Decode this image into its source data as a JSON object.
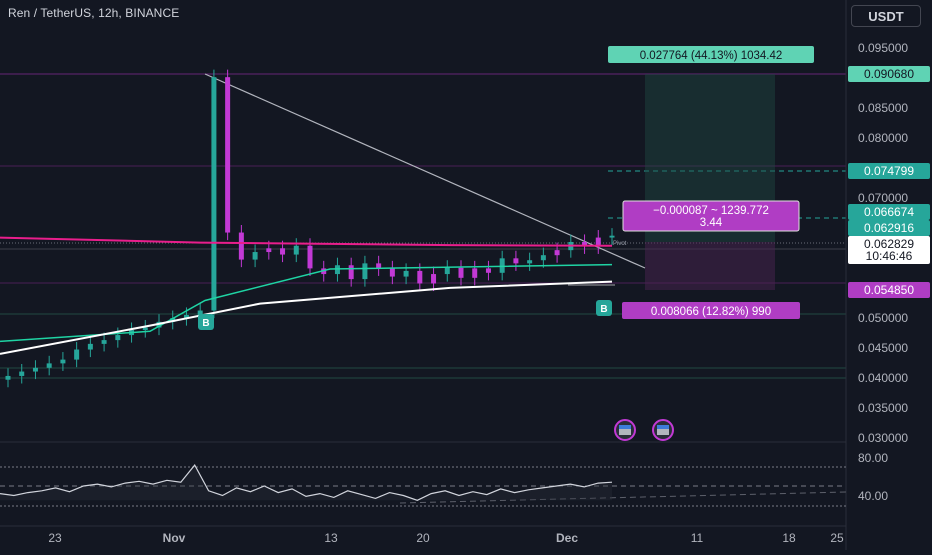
{
  "header": {
    "symbol_title": "Ren / TetherUS, 12h, BINANCE",
    "currency_label": "USDT"
  },
  "colors": {
    "background": "#131722",
    "candle_up": "#26a69a",
    "candle_purple": "#c239d5",
    "ema_magenta": "#e91e8c",
    "ema_green": "#1fd4a4",
    "ema_white": "#ffffff",
    "trendline": "#b2b5be",
    "target_badge": "#5fd3b4",
    "stop_badge": "#b03dc4"
  },
  "chart_data": {
    "type": "line",
    "title": "",
    "xlabel": "",
    "ylabel": "",
    "ylim": [
      0.03,
      0.0955
    ],
    "y_ticks": [
      "0.095000",
      "0.085000",
      "0.080000",
      "0.070000",
      "0.050000",
      "0.045000",
      "0.040000",
      "0.035000",
      "0.030000"
    ],
    "x_ticks": [
      "23",
      "Nov",
      "13",
      "20",
      "Dec",
      "11",
      "18",
      "25"
    ],
    "price_labels": {
      "top_target": "0.090680",
      "target": "0.074799",
      "level_a": "0.066674",
      "level_b": "0.062916",
      "current_price": "0.062829",
      "countdown": "10:46:46",
      "stop": "0.054850"
    },
    "position_box": {
      "target_label": "0.027764 (44.13%) 1034.42",
      "pnl_line1": "−0.000087 ~ 1239.772",
      "pnl_line2": "3.44",
      "stop_label": "0.008066 (12.82%) 990"
    },
    "buy_marker_label": "B",
    "annotation": "Pivot",
    "series": [
      {
        "name": "",
        "values": [
          0.0625,
          0.0617,
          0.0613,
          0.0612
        ]
      },
      {
        "name": "",
        "values": [
          0.046,
          0.0476,
          0.0525,
          0.0575,
          0.0582
        ]
      },
      {
        "name": "",
        "values": [
          0.044,
          0.0485,
          0.052,
          0.0545,
          0.0555
        ]
      }
    ],
    "candles_close": [
      0.0405,
      0.0412,
      0.0418,
      0.0425,
      0.0431,
      0.0447,
      0.0456,
      0.0462,
      0.047,
      0.0478,
      0.0482,
      0.0491,
      0.0497,
      0.0502,
      0.0509,
      0.088,
      0.0633,
      0.059,
      0.0602,
      0.0608,
      0.0598,
      0.0612,
      0.0576,
      0.0567,
      0.0581,
      0.0559,
      0.0584,
      0.0576,
      0.0563,
      0.0572,
      0.0552,
      0.0567,
      0.0577,
      0.0561,
      0.0576,
      0.0569,
      0.0592,
      0.0584,
      0.0589,
      0.0597,
      0.0605,
      0.0618,
      0.0611,
      0.0625,
      0.0628
    ],
    "rsi": {
      "y_ticks": [
        "80.00",
        "40.00"
      ],
      "values": [
        52,
        50,
        53,
        55,
        58,
        54,
        60,
        62,
        59,
        63,
        65,
        62,
        66,
        64,
        82,
        55,
        50,
        58,
        54,
        60,
        53,
        57,
        49,
        52,
        48,
        55,
        51,
        47,
        53,
        50,
        45,
        52,
        55,
        50,
        54,
        51,
        57,
        53,
        56,
        58,
        60,
        62,
        59,
        63,
        64
      ]
    }
  }
}
